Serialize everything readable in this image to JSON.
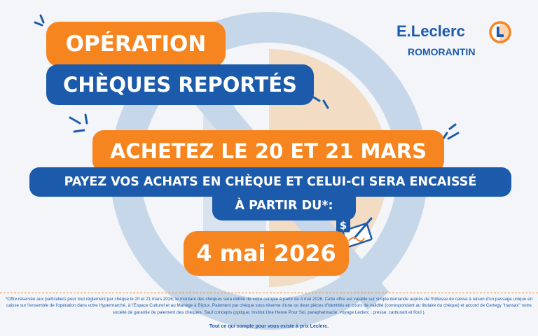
{
  "headline": {
    "line1": "OPÉRATION",
    "line2": "CHÈQUES REPORTÉS"
  },
  "offer": {
    "dates": "ACHETEZ LE  20 ET 21 MARS",
    "pay_line1": "PAYEZ VOS ACHATS EN CHÈQUE ET CELUI-CI SERA ENCAISSÉ",
    "pay_line2": "À PARTIR DU*:",
    "cash_date": "4 mai 2026"
  },
  "brand": {
    "name": "E.Leclerc",
    "city": "ROMORANTIN",
    "logo_icon": "leclerc-logo-icon"
  },
  "disclaimer": "*Offre réservée aux particuliers pour tout règlement par chèque le 20 et 21 mars 2026, le montant des chèques sera débité de votre compte à partir du 4 mai 2026. Cette offre est valable sur simple demande auprès de l'hôtesse de caisse à raison d'un passage unique en caisse sur l'ensemble de l'opération dans votre Hypermarché, à l'Espace Culturel et au Manège à Bijoux. Paiement par chèque sous réserve d'une ou deux pièces d'identités en cours de validité (correspondant au titulaire du chèque) et accord de Certegy \"transax\" notre société de garantie de paiement des chèques. Sauf concepts (optique, Institut Une Heure Pour Soi, parapharmacie, voyage Leclerc , presse, carburant et fioul ).",
  "tagline": "Tout ce qui compte pour vous existe à prix Leclerc.",
  "colors": {
    "orange": "#f6851f",
    "blue": "#1c5bab",
    "background": "#f3f5f9"
  },
  "icons": [
    "sparkle-icon",
    "cheque-signing-icon",
    "leclerc-logo-icon"
  ]
}
